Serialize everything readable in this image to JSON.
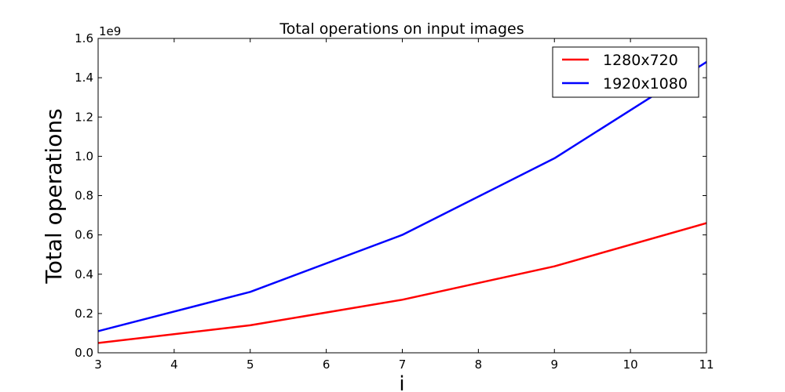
{
  "chart_data": {
    "type": "line",
    "title": "Total operations on input images",
    "xlabel": "i",
    "ylabel": "Total operations",
    "y_offset_label": "1e9",
    "xlim": [
      3,
      11
    ],
    "ylim": [
      0,
      1.6
    ],
    "x_ticks": [
      "3",
      "4",
      "5",
      "6",
      "7",
      "8",
      "9",
      "10",
      "11"
    ],
    "y_ticks": [
      "0.0",
      "0.2",
      "0.4",
      "0.6",
      "0.8",
      "1.0",
      "1.2",
      "1.4",
      "1.6"
    ],
    "x": [
      3,
      5,
      7,
      9,
      11
    ],
    "grid": false,
    "legend_position": "top-right",
    "series": [
      {
        "name": "1280x720",
        "color": "#ff0000",
        "values": [
          0.05,
          0.14,
          0.27,
          0.44,
          0.66
        ]
      },
      {
        "name": "1920x1080",
        "color": "#0000ff",
        "values": [
          0.11,
          0.31,
          0.6,
          0.99,
          1.48
        ]
      }
    ]
  }
}
